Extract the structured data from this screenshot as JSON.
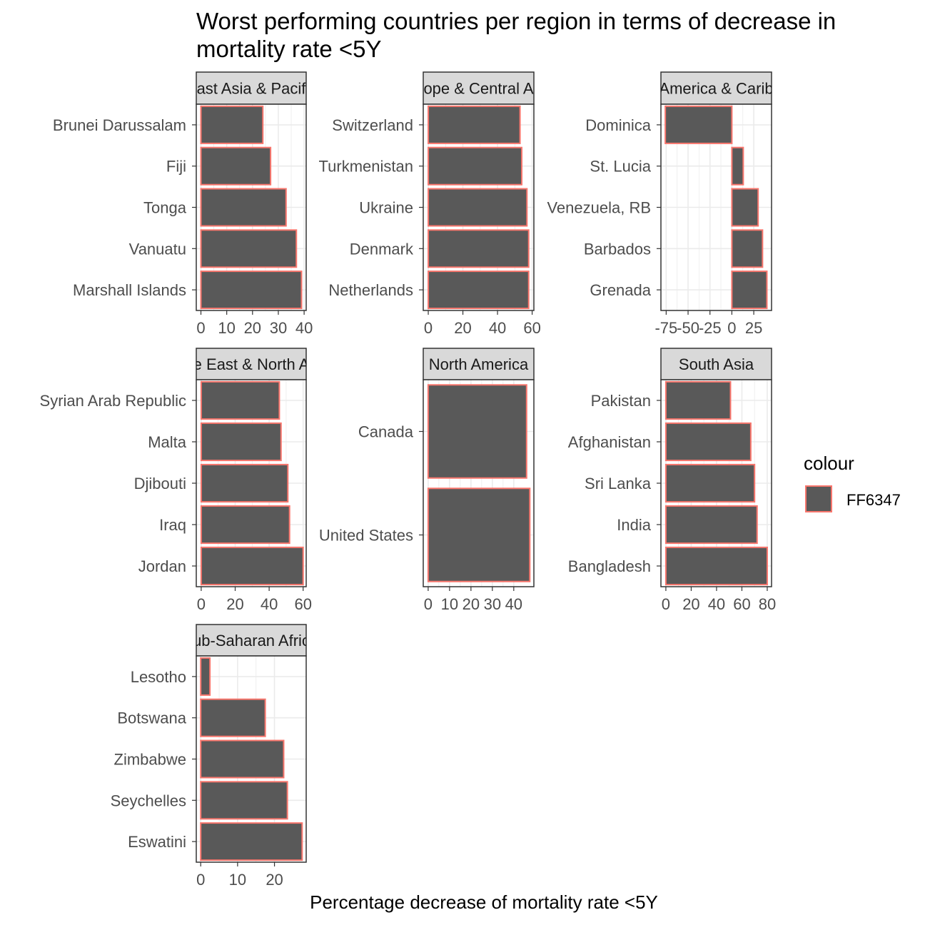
{
  "chart_data": {
    "type": "bar",
    "title": "Worst performing countries per region in terms of decrease in mortality rate <5Y",
    "xlabel": "Percentage decrease of mortality rate <5Y",
    "ylabel": "",
    "orientation": "horizontal",
    "grid": true,
    "legend": {
      "title": "colour",
      "entries": [
        "FF6347"
      ],
      "position": "right"
    },
    "colors": {
      "bar_fill": "#595959",
      "bar_outline": "#F8766D",
      "strip_fill": "#D9D9D9",
      "panel_border": "#333333",
      "grid": "#EBEBEB"
    },
    "panels": [
      {
        "strip": "East Asia & Pacific",
        "strip_visible": "ast Asia & Pacif",
        "categories": [
          "Brunei Darussalam",
          "Fiji",
          "Tonga",
          "Vanuatu",
          "Marshall Islands"
        ],
        "values": [
          24,
          27,
          33,
          37,
          39
        ],
        "xlim": [
          -1.8,
          40.8
        ],
        "xticks": [
          0,
          10,
          20,
          30,
          40
        ],
        "xtick_labels": [
          "0",
          "10",
          "20",
          "30",
          "40"
        ]
      },
      {
        "strip": "Europe & Central Asia",
        "strip_visible": "ope & Central A",
        "categories": [
          "Switzerland",
          "Turkmenistan",
          "Ukraine",
          "Denmark",
          "Netherlands"
        ],
        "values": [
          53,
          54,
          57,
          58,
          58
        ],
        "xlim": [
          -2.9,
          61
        ],
        "xticks": [
          0,
          20,
          40,
          60
        ],
        "xtick_labels": [
          "0",
          "20",
          "40",
          "60"
        ]
      },
      {
        "strip": "Latin America & Caribbean",
        "strip_visible": "America & Carib",
        "categories": [
          "Dominica",
          "St. Lucia",
          "Venezuela, RB",
          "Barbados",
          "Grenada"
        ],
        "values": [
          -76,
          13,
          30,
          35,
          40
        ],
        "xlim": [
          -81,
          45.3
        ],
        "xticks": [
          -75,
          -50,
          -25,
          0,
          25
        ],
        "xtick_labels": [
          "-75",
          "-50",
          "-25",
          "0",
          "25"
        ]
      },
      {
        "strip": "Middle East & North Africa",
        "strip_visible": "e East & North A",
        "categories": [
          "Syrian Arab Republic",
          "Malta",
          "Djibouti",
          "Iraq",
          "Jordan"
        ],
        "values": [
          46,
          47,
          51,
          52,
          60
        ],
        "xlim": [
          -2.9,
          61.8
        ],
        "xticks": [
          0,
          20,
          40,
          60
        ],
        "xtick_labels": [
          "0",
          "20",
          "40",
          "60"
        ]
      },
      {
        "strip": "North America",
        "strip_visible": "North America",
        "categories": [
          "Canada",
          "United States"
        ],
        "values": [
          46,
          47.5
        ],
        "xlim": [
          -2.3,
          49.4
        ],
        "xticks": [
          0,
          10,
          20,
          30,
          40
        ],
        "xtick_labels": [
          "0",
          "10",
          "20",
          "30",
          "40"
        ]
      },
      {
        "strip": "South Asia",
        "strip_visible": "South Asia",
        "categories": [
          "Pakistan",
          "Afghanistan",
          "Sri Lanka",
          "India",
          "Bangladesh"
        ],
        "values": [
          51,
          67,
          70,
          72,
          80
        ],
        "xlim": [
          -3.9,
          83.4
        ],
        "xticks": [
          0,
          20,
          40,
          60,
          80
        ],
        "xtick_labels": [
          "0",
          "20",
          "40",
          "60",
          "80"
        ]
      },
      {
        "strip": "Sub-Saharan Africa",
        "strip_visible": "ub-Saharan Afric",
        "categories": [
          "Lesotho",
          "Botswana",
          "Zimbabwe",
          "Seychelles",
          "Eswatini"
        ],
        "values": [
          2.5,
          17.5,
          22.5,
          23.5,
          27.5
        ],
        "xlim": [
          -1.2,
          28.6
        ],
        "xticks": [
          0,
          10,
          20
        ],
        "xtick_labels": [
          "0",
          "10",
          "20"
        ]
      }
    ]
  }
}
